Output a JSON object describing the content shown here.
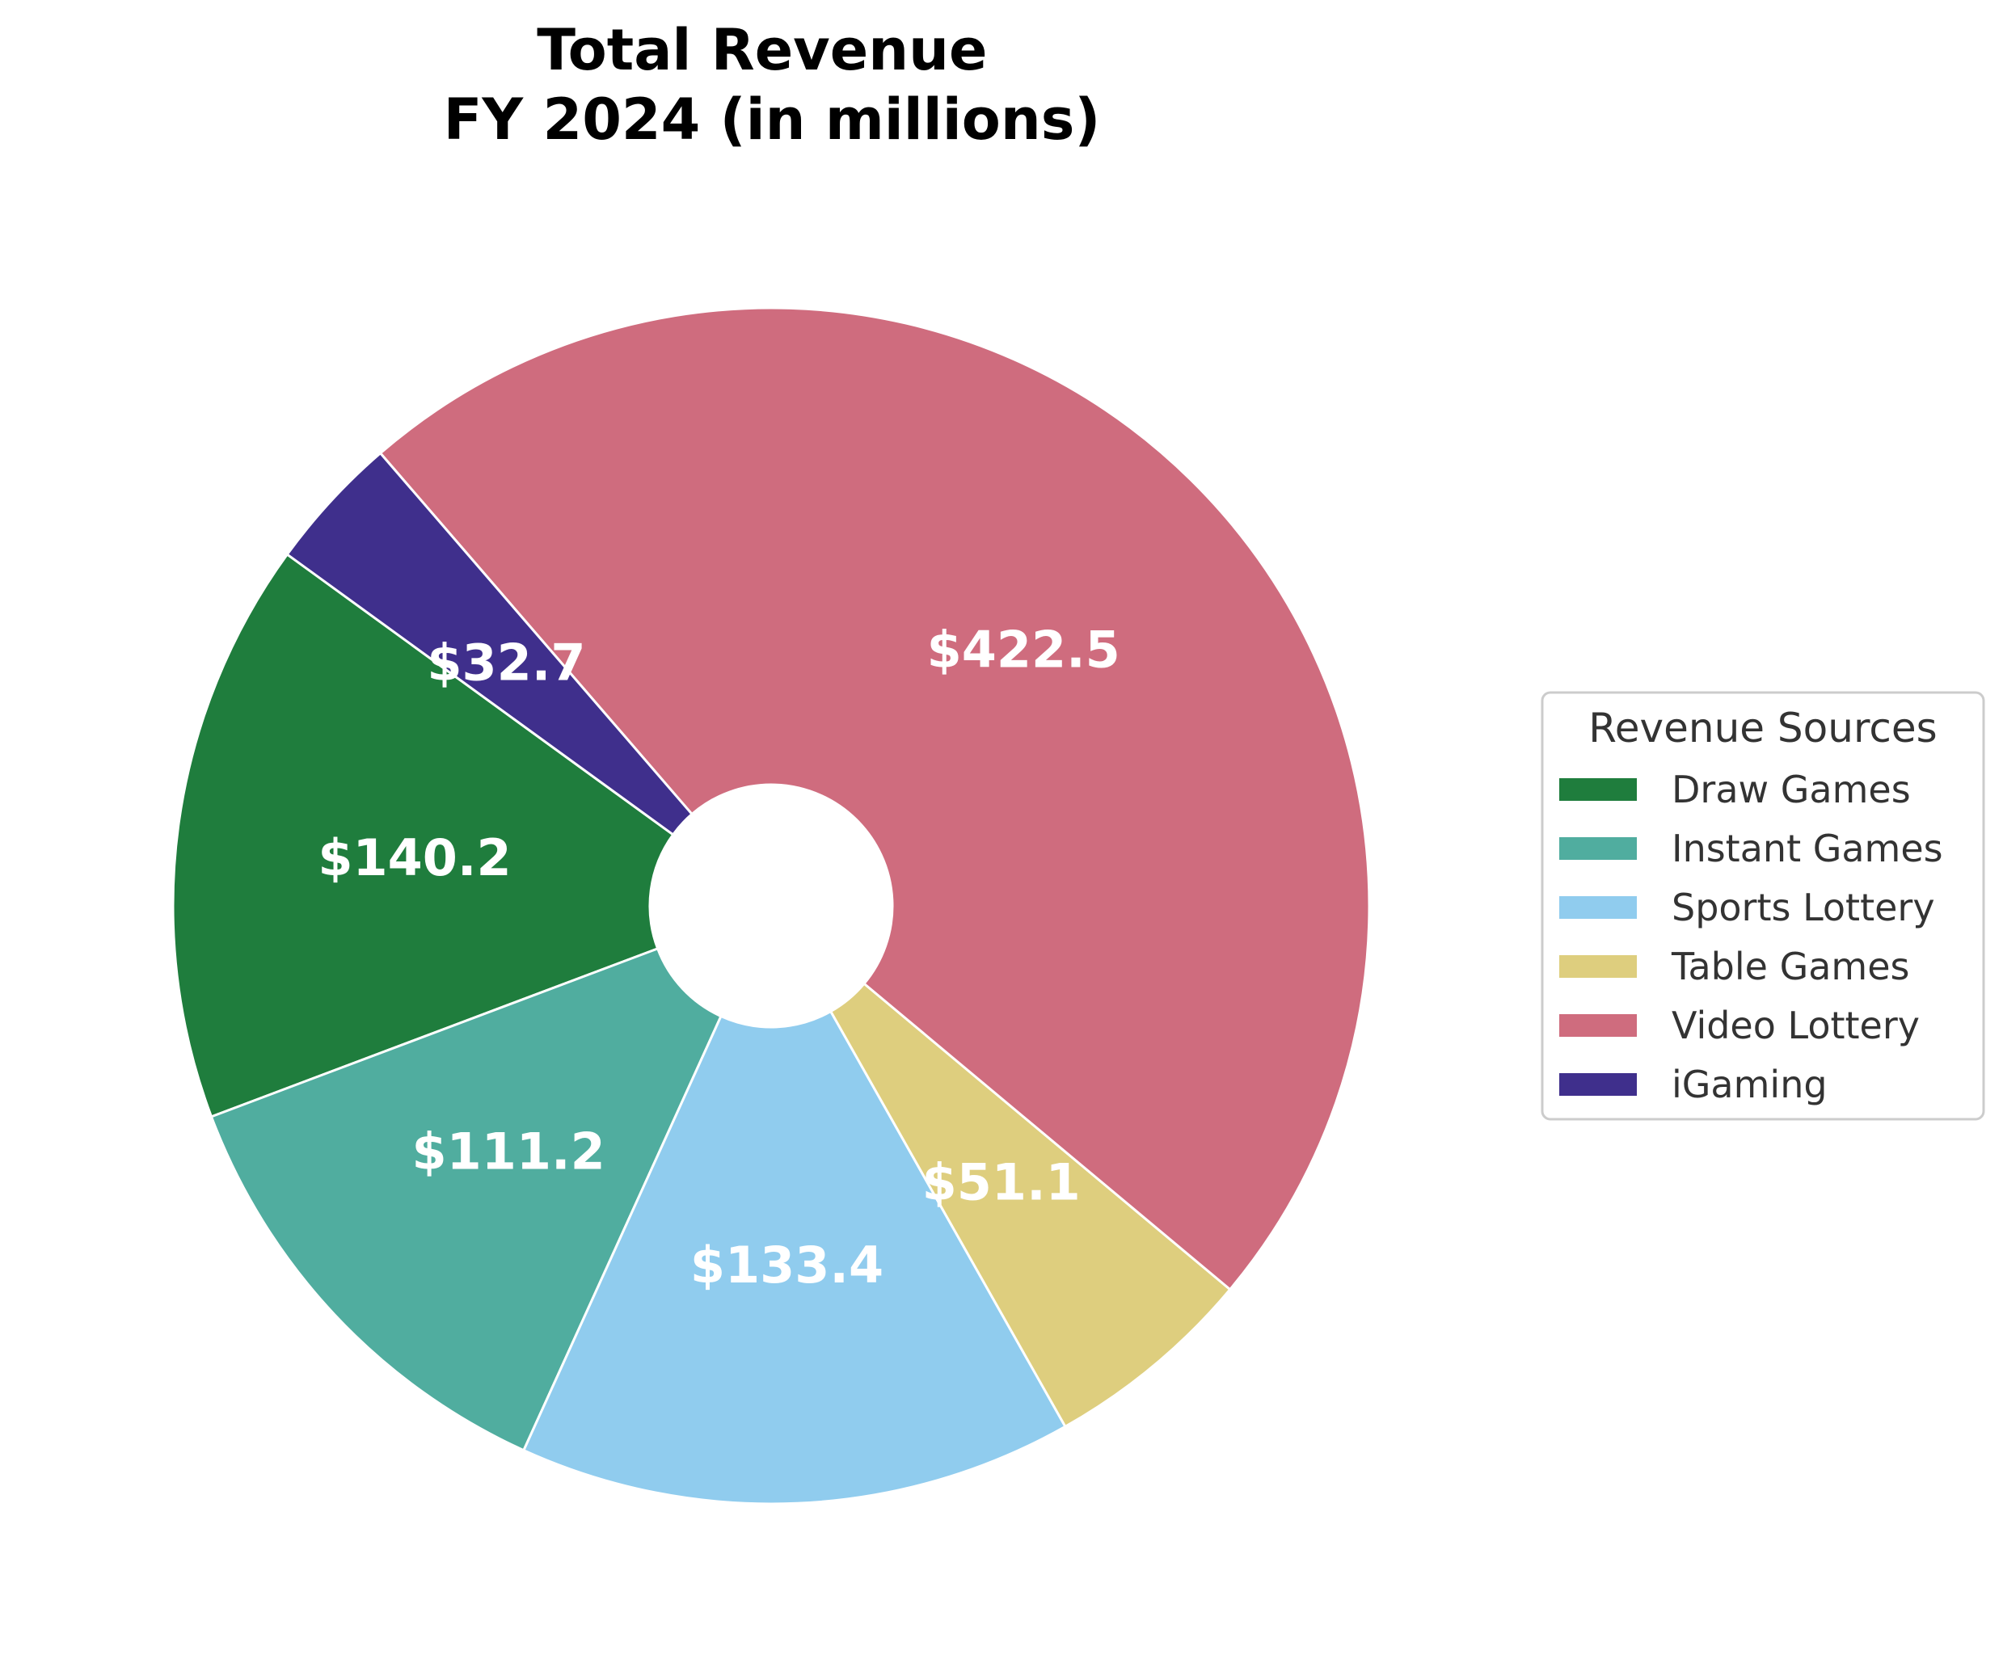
{
  "chart_data": {
    "type": "pie",
    "title": "Total Revenue\nFY 2024 (in millions)",
    "labels": [
      "Draw Games",
      "Instant Games",
      "Sports Lottery",
      "Table Games",
      "Video Lottery",
      "iGaming"
    ],
    "values": [
      140.2,
      111.2,
      133.4,
      51.1,
      422.5,
      32.7
    ],
    "value_labels": [
      "$140.2",
      "$111.2",
      "$133.4",
      "$51.1",
      "$422.5",
      "$32.7"
    ],
    "colors": [
      "#1f7d3d",
      "#50ad9f",
      "#90ccee",
      "#dece7e",
      "#cf6c7e",
      "#3f2f8c"
    ],
    "donut": true,
    "legend": {
      "title": "Revenue Sources",
      "placement": "right"
    }
  }
}
